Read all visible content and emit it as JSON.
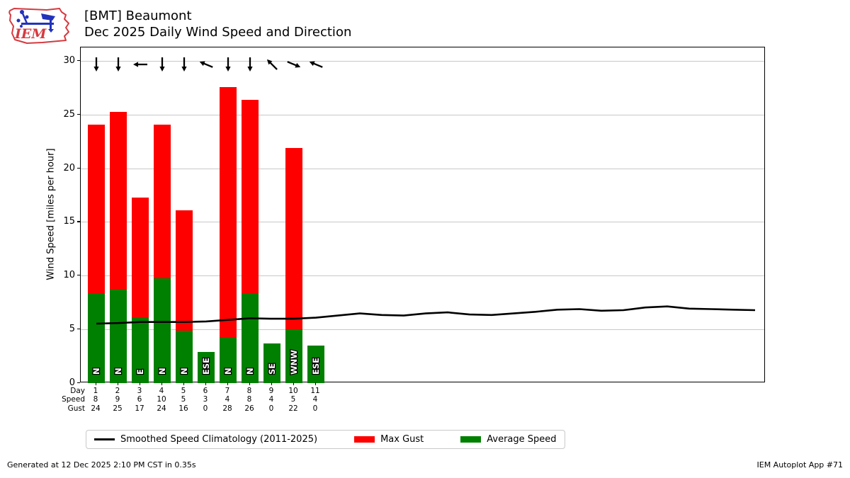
{
  "header": {
    "logo_text": "IEM",
    "title_line1": "[BMT] Beaumont",
    "title_line2": "Dec 2025 Daily Wind Speed and Direction"
  },
  "footer": {
    "generated_text": "Generated at 12 Dec 2025 2:10 PM CST in 0.35s",
    "app_text": "IEM Autoplot App #71"
  },
  "colors": {
    "max_gust": "#ff0000",
    "avg_speed": "#008000",
    "climatology": "#000000",
    "gridline": "#c8c8c8",
    "plot_border": "#000000",
    "logo_red": "#d53a40",
    "logo_blue": "#2233bb"
  },
  "chart_data": {
    "type": "bar",
    "title": "[BMT] Beaumont  Dec 2025 Daily Wind Speed and Direction",
    "xlabel": "",
    "ylabel": "Wind Speed [miles per hour]",
    "ylim": [
      0,
      31.3
    ],
    "yticks": [
      0,
      5,
      10,
      15,
      20,
      25,
      30
    ],
    "grid": true,
    "legend_position": "bottom",
    "days": [
      1,
      2,
      3,
      4,
      5,
      6,
      7,
      8,
      9,
      10,
      11
    ],
    "wind_directions": [
      "N",
      "N",
      "E",
      "N",
      "N",
      "ESE",
      "N",
      "N",
      "SE",
      "WNW",
      "ESE"
    ],
    "series": [
      {
        "name": "Average Speed",
        "type": "bar",
        "color": "#008000",
        "values": [
          8.3,
          8.7,
          6.1,
          9.8,
          4.9,
          2.9,
          4.2,
          8.3,
          3.7,
          5.0,
          3.5
        ]
      },
      {
        "name": "Max Gust",
        "type": "bar",
        "color": "#ff0000",
        "values": [
          24.1,
          25.3,
          17.3,
          24.1,
          16.1,
          0,
          27.6,
          26.4,
          0,
          21.9,
          0
        ]
      },
      {
        "name": "Smoothed Speed Climatology (2011-2025)",
        "type": "line",
        "color": "#000000",
        "x": [
          1,
          2,
          3,
          4,
          5,
          6,
          7,
          8,
          9,
          10,
          11,
          12,
          13,
          14,
          15,
          16,
          17,
          18,
          19,
          20,
          21,
          22,
          23,
          24,
          25,
          26,
          27,
          28,
          29,
          30,
          31
        ],
        "values": [
          5.55,
          5.6,
          5.7,
          5.7,
          5.7,
          5.75,
          5.9,
          6.05,
          6.0,
          6.0,
          6.1,
          6.3,
          6.5,
          6.35,
          6.3,
          6.5,
          6.6,
          6.4,
          6.35,
          6.5,
          6.65,
          6.85,
          6.9,
          6.75,
          6.8,
          7.05,
          7.15,
          6.95,
          6.9,
          6.85,
          6.8
        ]
      }
    ],
    "table": {
      "row_labels": [
        "Day",
        "Speed",
        "Gust"
      ],
      "rows": {
        "Day": [
          1,
          2,
          3,
          4,
          5,
          6,
          7,
          8,
          9,
          10,
          11
        ],
        "Speed": [
          8,
          9,
          6,
          10,
          5,
          3,
          4,
          8,
          4,
          5,
          4
        ],
        "Gust": [
          24,
          25,
          17,
          24,
          16,
          0,
          28,
          26,
          0,
          22,
          0
        ]
      }
    },
    "legend": [
      {
        "label": "Smoothed Speed Climatology (2011-2025)",
        "type": "line",
        "color": "#000000"
      },
      {
        "label": "Max Gust",
        "type": "patch",
        "color": "#ff0000"
      },
      {
        "label": "Average Speed",
        "type": "patch",
        "color": "#008000"
      }
    ]
  }
}
